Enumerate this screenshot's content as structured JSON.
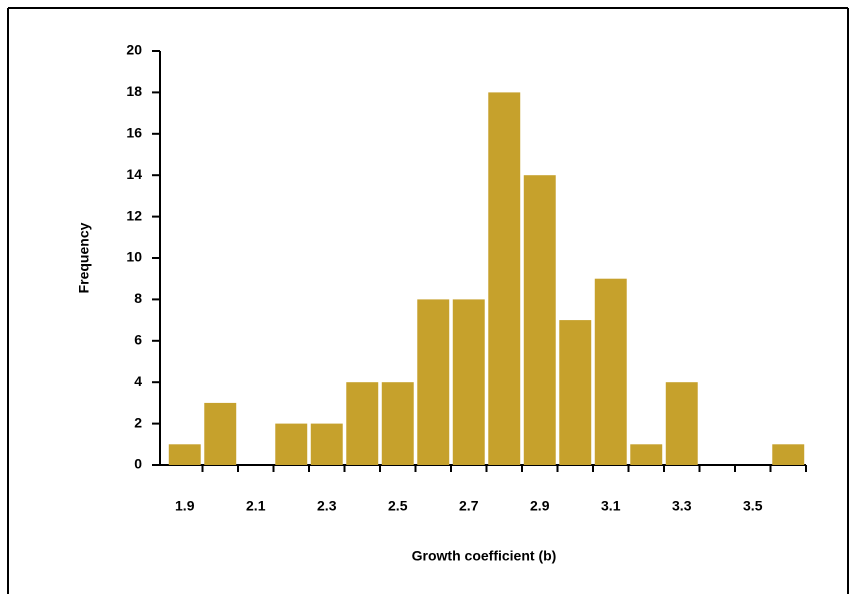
{
  "chart_data": {
    "type": "bar",
    "x_label": "Growth coefficient (b)",
    "y_label": "Frequency",
    "categories": [
      "1.9",
      null,
      "2.1",
      null,
      "2.3",
      null,
      "2.5",
      null,
      "2.7",
      null,
      "2.9",
      null,
      "3.1",
      null,
      "3.3",
      null,
      "3.5",
      null
    ],
    "values": [
      1,
      3,
      0,
      2,
      2,
      4,
      4,
      8,
      8,
      18,
      14,
      7,
      9,
      1,
      4,
      0,
      0,
      1
    ],
    "color": "#c6a12c",
    "ylim": [
      0,
      20
    ],
    "yticks": [
      0,
      2,
      4,
      6,
      8,
      10,
      12,
      14,
      16,
      18,
      20
    ],
    "grid": false
  }
}
